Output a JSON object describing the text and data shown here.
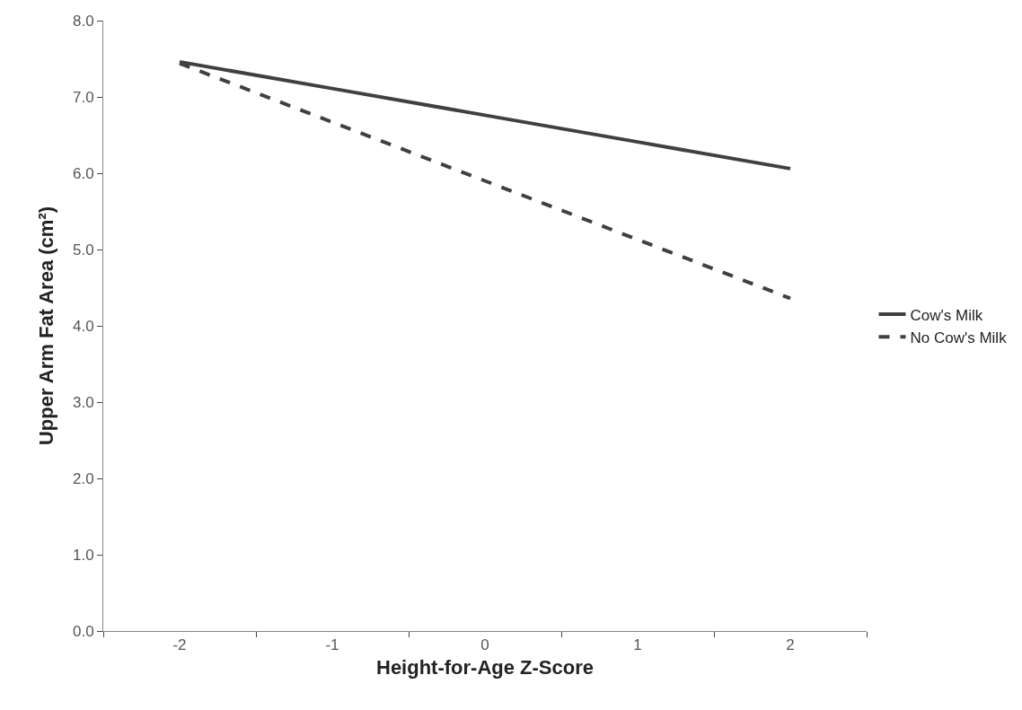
{
  "chart_data": {
    "type": "line",
    "xlabel": "Height-for-Age Z-Score",
    "ylabel": "Upper Arm Fat Area (cm²)",
    "categories": [
      "-2",
      "-1",
      "0",
      "1",
      "2"
    ],
    "series": [
      {
        "name": "Cow's Milk",
        "color": "#404040",
        "line_style": "solid",
        "values": [
          7.46,
          7.11,
          6.76,
          6.41,
          6.06
        ]
      },
      {
        "name": "No Cow's Milk",
        "color": "#404040",
        "line_style": "dashed",
        "values": [
          7.44,
          6.67,
          5.9,
          5.13,
          4.36
        ]
      }
    ],
    "ylim": [
      0,
      8
    ],
    "yticks": [
      {
        "value": 0,
        "label": "0.0"
      },
      {
        "value": 1,
        "label": "1.0"
      },
      {
        "value": 2,
        "label": "2.0"
      },
      {
        "value": 3,
        "label": "3.0"
      },
      {
        "value": 4,
        "label": "4.0"
      },
      {
        "value": 5,
        "label": "5.0"
      },
      {
        "value": 6,
        "label": "6.0"
      },
      {
        "value": 7,
        "label": "7.0"
      },
      {
        "value": 8,
        "label": "8.0"
      }
    ],
    "legend": "right",
    "marker": "none"
  }
}
